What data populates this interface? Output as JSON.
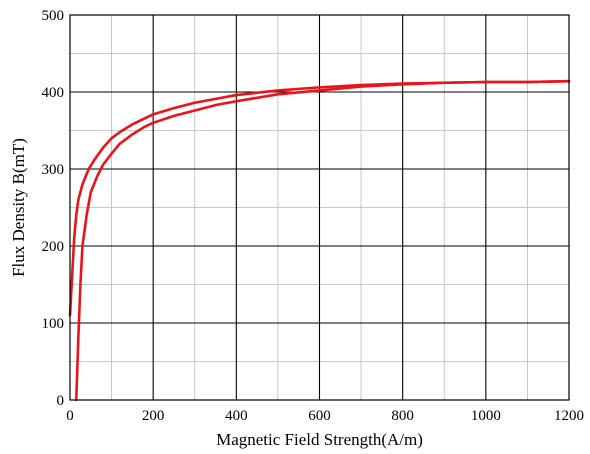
{
  "chart_data": {
    "type": "line",
    "title": "",
    "xlabel": "Magnetic Field Strength(A/m)",
    "ylabel": "Flux Density B(mT)",
    "xlim": [
      0,
      1200
    ],
    "ylim": [
      0,
      500
    ],
    "x_ticks": [
      0,
      200,
      400,
      600,
      800,
      1000,
      1200
    ],
    "y_ticks": [
      0,
      100,
      200,
      300,
      400,
      500
    ],
    "x_tick_labels": [
      "0",
      "200",
      "400",
      "600",
      "800",
      "1000",
      "1200"
    ],
    "y_tick_labels": [
      "0",
      "100",
      "200",
      "300",
      "400",
      "500"
    ],
    "grid": true,
    "minor_grid": true,
    "legend": "none",
    "line_color": "#e8141b",
    "series": [
      {
        "x": [
          0,
          5,
          10,
          15,
          20,
          30,
          45,
          60,
          80,
          100,
          120,
          150,
          200,
          250,
          300,
          400,
          500,
          600,
          700,
          800,
          900,
          1000,
          1100,
          1200
        ],
        "y": [
          110,
          160,
          210,
          240,
          260,
          280,
          300,
          313,
          328,
          340,
          348,
          358,
          371,
          379,
          386,
          396,
          402,
          406,
          409,
          411,
          412,
          413,
          413,
          414
        ]
      },
      {
        "x": [
          15,
          20,
          25,
          30,
          40,
          50,
          65,
          80,
          100,
          120,
          150,
          180,
          200,
          250,
          300,
          350,
          400,
          500,
          600,
          700,
          800,
          900,
          1000,
          1100,
          1200
        ],
        "y": [
          0,
          80,
          150,
          200,
          240,
          270,
          290,
          306,
          320,
          333,
          345,
          355,
          360,
          369,
          376,
          383,
          388,
          397,
          402,
          407,
          410,
          412,
          413,
          413,
          414
        ]
      }
    ]
  }
}
